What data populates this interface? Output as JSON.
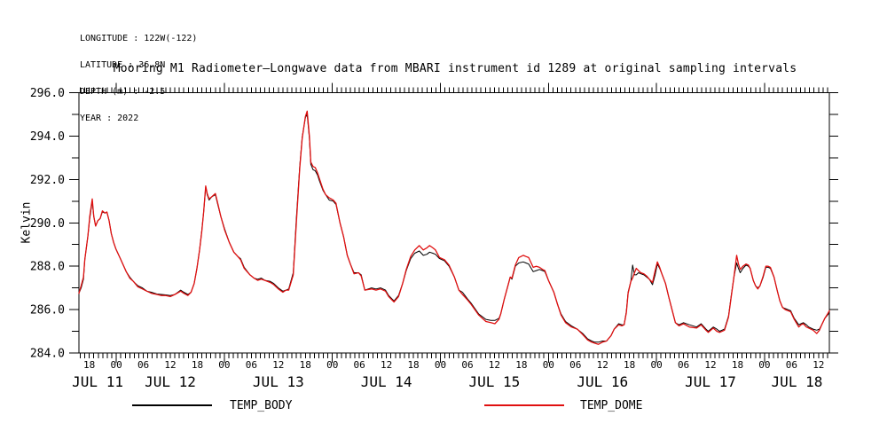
{
  "header": {
    "lines": [
      "LONGITUDE : 122W(-122)",
      "LATITUDE : 36.8N",
      "DEPTH (m) : -2.5",
      "YEAR : 2022"
    ]
  },
  "chart_data": {
    "type": "line",
    "title": "Mooring M1 Radiometer—Longwave data from MBARI instrument id 1289 at original sampling intervals",
    "ylabel": "Kelvin",
    "ylim": [
      284.0,
      296.0
    ],
    "y_major_step": 2.0,
    "y_minor_step": 1.0,
    "y_tick_labels": [
      "284.0",
      "286.0",
      "288.0",
      "290.0",
      "292.0",
      "294.0",
      "296.0"
    ],
    "x_range_hours": [
      15.7,
      182.4
    ],
    "x_reference": "hours from JUL 11 2022 00:00",
    "hour_label_step": 6,
    "hour_label_cycle": [
      "00",
      "06",
      "12",
      "18"
    ],
    "day_labels": [
      "JUL 11",
      "JUL 12",
      "JUL 13",
      "JUL 14",
      "JUL 15",
      "JUL 16",
      "JUL 17",
      "JUL 18"
    ],
    "grid": false,
    "legend_position": "bottom",
    "series": [
      {
        "name": "TEMP_BODY",
        "color": "#000000",
        "column": 1,
        "width": 1.0
      },
      {
        "name": "TEMP_DOME",
        "color": "#e01010",
        "column": 2,
        "width": 1.3
      }
    ],
    "points": [
      [
        15.7,
        286.75,
        286.75
      ],
      [
        16.2,
        287.0,
        287.1
      ],
      [
        16.7,
        287.4,
        287.5
      ],
      [
        17.0,
        288.3,
        288.3
      ],
      [
        17.7,
        289.4,
        289.4
      ],
      [
        18.1,
        290.2,
        290.3
      ],
      [
        18.65,
        291.0,
        291.1
      ],
      [
        19.0,
        290.3,
        290.3
      ],
      [
        19.4,
        289.85,
        289.85
      ],
      [
        19.9,
        290.1,
        290.1
      ],
      [
        20.4,
        290.2,
        290.2
      ],
      [
        20.9,
        290.5,
        290.55
      ],
      [
        21.5,
        290.45,
        290.45
      ],
      [
        21.9,
        290.5,
        290.5
      ],
      [
        22.4,
        290.1,
        290.1
      ],
      [
        22.9,
        289.5,
        289.5
      ],
      [
        23.4,
        289.1,
        289.1
      ],
      [
        23.9,
        288.8,
        288.8
      ],
      [
        24.9,
        288.35,
        288.35
      ],
      [
        26.2,
        287.75,
        287.75
      ],
      [
        27.0,
        287.5,
        287.45
      ],
      [
        27.8,
        287.3,
        287.3
      ],
      [
        28.8,
        287.1,
        287.05
      ],
      [
        29.8,
        287.0,
        286.95
      ],
      [
        30.8,
        286.85,
        286.85
      ],
      [
        31.8,
        286.8,
        286.75
      ],
      [
        33.0,
        286.72,
        286.7
      ],
      [
        34.0,
        286.7,
        286.65
      ],
      [
        35.0,
        286.68,
        286.65
      ],
      [
        36.0,
        286.65,
        286.6
      ],
      [
        37.0,
        286.7,
        286.7
      ],
      [
        38.3,
        286.9,
        286.85
      ],
      [
        39.0,
        286.8,
        286.75
      ],
      [
        39.9,
        286.7,
        286.65
      ],
      [
        40.6,
        286.8,
        286.8
      ],
      [
        41.3,
        287.2,
        287.2
      ],
      [
        41.9,
        287.9,
        287.9
      ],
      [
        42.5,
        288.75,
        288.75
      ],
      [
        43.0,
        289.65,
        289.6
      ],
      [
        43.4,
        290.5,
        290.5
      ],
      [
        43.85,
        291.65,
        291.7
      ],
      [
        44.2,
        291.3,
        291.35
      ],
      [
        44.6,
        291.05,
        291.1
      ],
      [
        45.2,
        291.2,
        291.2
      ],
      [
        46.0,
        291.3,
        291.35
      ],
      [
        46.6,
        290.8,
        290.85
      ],
      [
        47.2,
        290.3,
        290.3
      ],
      [
        48.1,
        289.7,
        289.65
      ],
      [
        49.1,
        289.1,
        289.1
      ],
      [
        50.1,
        288.65,
        288.65
      ],
      [
        51.0,
        288.45,
        288.45
      ],
      [
        51.6,
        288.35,
        288.3
      ],
      [
        52.4,
        287.95,
        287.9
      ],
      [
        53.7,
        287.6,
        287.6
      ],
      [
        54.6,
        287.45,
        287.45
      ],
      [
        55.4,
        287.4,
        287.35
      ],
      [
        56.2,
        287.45,
        287.4
      ],
      [
        57.0,
        287.35,
        287.35
      ],
      [
        58.2,
        287.3,
        287.25
      ],
      [
        59.0,
        287.2,
        287.15
      ],
      [
        60.0,
        287.0,
        286.95
      ],
      [
        61.0,
        286.85,
        286.8
      ],
      [
        61.7,
        286.9,
        286.9
      ],
      [
        62.3,
        286.95,
        286.9
      ],
      [
        63.3,
        287.7,
        287.6
      ],
      [
        64.0,
        290.2,
        290.0
      ],
      [
        64.75,
        292.6,
        292.5
      ],
      [
        65.3,
        293.95,
        293.9
      ],
      [
        66.0,
        294.85,
        294.9
      ],
      [
        66.4,
        295.0,
        295.15
      ],
      [
        66.9,
        293.9,
        294.0
      ],
      [
        67.2,
        292.7,
        292.8
      ],
      [
        67.7,
        292.45,
        292.6
      ],
      [
        68.2,
        292.4,
        292.55
      ],
      [
        68.7,
        292.2,
        292.3
      ],
      [
        69.1,
        291.95,
        292.05
      ],
      [
        69.9,
        291.5,
        291.55
      ],
      [
        70.5,
        291.3,
        291.3
      ],
      [
        71.3,
        291.05,
        291.15
      ],
      [
        72.2,
        291.0,
        291.05
      ],
      [
        72.8,
        290.85,
        290.9
      ],
      [
        73.7,
        290.0,
        290.0
      ],
      [
        74.5,
        289.35,
        289.35
      ],
      [
        75.3,
        288.5,
        288.5
      ],
      [
        76.0,
        288.1,
        288.1
      ],
      [
        76.8,
        287.7,
        287.65
      ],
      [
        77.8,
        287.7,
        287.7
      ],
      [
        78.4,
        287.6,
        287.55
      ],
      [
        79.2,
        286.9,
        286.9
      ],
      [
        80.7,
        287.0,
        286.95
      ],
      [
        81.7,
        286.95,
        286.9
      ],
      [
        82.7,
        287.0,
        286.95
      ],
      [
        83.8,
        286.9,
        286.85
      ],
      [
        84.5,
        286.65,
        286.6
      ],
      [
        85.7,
        286.4,
        286.35
      ],
      [
        86.7,
        286.65,
        286.6
      ],
      [
        87.6,
        287.2,
        287.2
      ],
      [
        88.4,
        287.8,
        287.85
      ],
      [
        89.4,
        288.35,
        288.45
      ],
      [
        90.3,
        288.6,
        288.75
      ],
      [
        91.3,
        288.7,
        288.95
      ],
      [
        92.2,
        288.5,
        288.75
      ],
      [
        93.0,
        288.55,
        288.85
      ],
      [
        93.6,
        288.65,
        288.95
      ],
      [
        94.3,
        288.6,
        288.85
      ],
      [
        94.9,
        288.55,
        288.75
      ],
      [
        95.8,
        288.35,
        288.4
      ],
      [
        96.9,
        288.25,
        288.3
      ],
      [
        97.9,
        288.0,
        288.05
      ],
      [
        99.1,
        287.5,
        287.5
      ],
      [
        100.1,
        286.9,
        286.9
      ],
      [
        100.9,
        286.8,
        286.7
      ],
      [
        102.0,
        286.5,
        286.45
      ],
      [
        102.8,
        286.3,
        286.25
      ],
      [
        104.5,
        285.8,
        285.75
      ],
      [
        106.1,
        285.55,
        285.45
      ],
      [
        107.2,
        285.5,
        285.4
      ],
      [
        108.1,
        285.5,
        285.35
      ],
      [
        109.0,
        285.6,
        285.55
      ],
      [
        109.4,
        285.8,
        285.8
      ],
      [
        110.2,
        286.5,
        286.5
      ],
      [
        111.0,
        287.1,
        287.1
      ],
      [
        111.5,
        287.5,
        287.5
      ],
      [
        111.9,
        287.4,
        287.45
      ],
      [
        112.65,
        288.0,
        288.05
      ],
      [
        113.4,
        288.15,
        288.4
      ],
      [
        114.4,
        288.2,
        288.5
      ],
      [
        115.0,
        288.15,
        288.45
      ],
      [
        115.6,
        288.1,
        288.4
      ],
      [
        116.6,
        287.75,
        287.95
      ],
      [
        117.3,
        287.8,
        288.0
      ],
      [
        118.0,
        287.85,
        287.95
      ],
      [
        118.7,
        287.8,
        287.85
      ],
      [
        119.2,
        287.75,
        287.8
      ],
      [
        120.0,
        287.35,
        287.35
      ],
      [
        121.2,
        286.8,
        286.8
      ],
      [
        122.0,
        286.25,
        286.25
      ],
      [
        122.8,
        285.8,
        285.75
      ],
      [
        123.8,
        285.45,
        285.4
      ],
      [
        125.1,
        285.25,
        285.2
      ],
      [
        126.4,
        285.1,
        285.1
      ],
      [
        127.6,
        284.9,
        284.85
      ],
      [
        128.7,
        284.65,
        284.6
      ],
      [
        129.6,
        284.55,
        284.5
      ],
      [
        130.3,
        284.5,
        284.45
      ],
      [
        131.1,
        284.5,
        284.4
      ],
      [
        132.0,
        284.55,
        284.5
      ],
      [
        132.9,
        284.55,
        284.55
      ],
      [
        133.9,
        284.8,
        284.8
      ],
      [
        134.6,
        285.1,
        285.1
      ],
      [
        135.6,
        285.35,
        285.3
      ],
      [
        136.3,
        285.3,
        285.25
      ],
      [
        136.8,
        285.3,
        285.3
      ],
      [
        137.3,
        285.9,
        285.85
      ],
      [
        137.7,
        286.8,
        286.75
      ],
      [
        138.3,
        287.3,
        287.3
      ],
      [
        138.7,
        288.05,
        287.45
      ],
      [
        139.1,
        287.6,
        287.7
      ],
      [
        139.5,
        287.6,
        287.9
      ],
      [
        140.0,
        287.7,
        287.8
      ],
      [
        140.5,
        287.65,
        287.7
      ],
      [
        141.2,
        287.6,
        287.65
      ],
      [
        141.8,
        287.5,
        287.55
      ],
      [
        142.4,
        287.4,
        287.4
      ],
      [
        143.1,
        287.15,
        287.25
      ],
      [
        143.7,
        287.6,
        287.8
      ],
      [
        144.2,
        288.1,
        288.2
      ],
      [
        144.7,
        287.9,
        287.95
      ],
      [
        145.1,
        287.7,
        287.7
      ],
      [
        146.0,
        287.2,
        287.2
      ],
      [
        146.7,
        286.6,
        286.6
      ],
      [
        147.45,
        286.0,
        286.0
      ],
      [
        148.2,
        285.4,
        285.4
      ],
      [
        149.0,
        285.3,
        285.25
      ],
      [
        150.0,
        285.4,
        285.35
      ],
      [
        151.3,
        285.3,
        285.2
      ],
      [
        152.9,
        285.2,
        285.15
      ],
      [
        153.9,
        285.35,
        285.3
      ],
      [
        155.0,
        285.1,
        285.05
      ],
      [
        155.5,
        285.0,
        284.95
      ],
      [
        156.6,
        285.2,
        285.15
      ],
      [
        157.4,
        285.1,
        285.0
      ],
      [
        158.0,
        285.0,
        284.95
      ],
      [
        159.1,
        285.1,
        285.05
      ],
      [
        160.0,
        285.7,
        285.65
      ],
      [
        160.6,
        286.65,
        286.6
      ],
      [
        161.2,
        287.5,
        287.5
      ],
      [
        161.8,
        288.15,
        288.5
      ],
      [
        162.2,
        287.9,
        288.1
      ],
      [
        162.6,
        287.7,
        287.85
      ],
      [
        163.2,
        287.9,
        288.0
      ],
      [
        163.9,
        288.05,
        288.1
      ],
      [
        164.4,
        288.0,
        288.05
      ],
      [
        164.8,
        287.9,
        287.9
      ],
      [
        165.5,
        287.35,
        287.35
      ],
      [
        166.0,
        287.1,
        287.1
      ],
      [
        166.5,
        287.0,
        286.95
      ],
      [
        167.0,
        287.1,
        287.1
      ],
      [
        167.7,
        287.5,
        287.55
      ],
      [
        168.3,
        287.95,
        288.0
      ],
      [
        168.8,
        287.95,
        288.0
      ],
      [
        169.3,
        287.9,
        287.95
      ],
      [
        170.1,
        287.5,
        287.5
      ],
      [
        170.8,
        286.9,
        286.9
      ],
      [
        171.4,
        286.4,
        286.4
      ],
      [
        172.0,
        286.1,
        286.1
      ],
      [
        172.6,
        286.05,
        286.0
      ],
      [
        173.8,
        285.95,
        285.9
      ],
      [
        174.6,
        285.6,
        285.55
      ],
      [
        175.6,
        285.3,
        285.2
      ],
      [
        176.1,
        285.35,
        285.3
      ],
      [
        176.6,
        285.4,
        285.35
      ],
      [
        177.3,
        285.3,
        285.2
      ],
      [
        177.8,
        285.2,
        285.15
      ],
      [
        178.8,
        285.1,
        285.05
      ],
      [
        179.6,
        285.05,
        284.9
      ],
      [
        180.2,
        285.1,
        285.05
      ],
      [
        180.7,
        285.3,
        285.3
      ],
      [
        181.4,
        285.6,
        285.6
      ],
      [
        182.0,
        285.75,
        285.8
      ],
      [
        182.4,
        285.85,
        285.95
      ]
    ]
  },
  "legend": {
    "body_label": "TEMP_BODY",
    "dome_label": "TEMP_DOME"
  }
}
